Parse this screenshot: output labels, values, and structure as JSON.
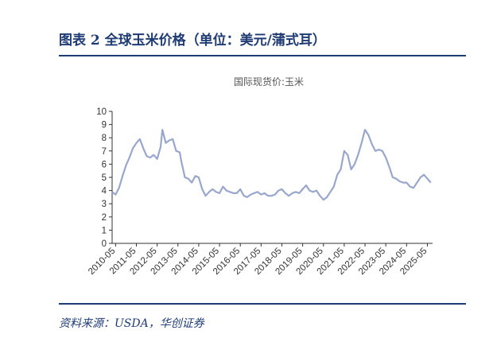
{
  "header": {
    "title": "图表 2   全球玉米价格（单位：美元/蒲式耳）"
  },
  "footer": {
    "source": "资料来源：USDA，华创证券"
  },
  "colors": {
    "accent": "#1f3b73",
    "series": "#9aa7cc"
  },
  "chart_data": {
    "type": "line",
    "title": "国际现货价:玉米",
    "xlabel": "",
    "ylabel": "",
    "ylim": [
      0,
      10
    ],
    "yticks": [
      0,
      1,
      2,
      3,
      4,
      5,
      6,
      7,
      8,
      9,
      10
    ],
    "xlim": [
      "2010-03",
      "2025-08"
    ],
    "xtick_labels": [
      "2010-05",
      "2011-05",
      "2012-05",
      "2013-05",
      "2014-05",
      "2015-05",
      "2016-05",
      "2017-05",
      "2018-05",
      "2019-05",
      "2020-05",
      "2021-05",
      "2022-05",
      "2023-05",
      "2024-05",
      "2025-05"
    ],
    "grid": false,
    "legend": "none",
    "series": [
      {
        "x": [
          "2010-03",
          "2010-05",
          "2010-07",
          "2010-09",
          "2010-11",
          "2011-01",
          "2011-03",
          "2011-05",
          "2011-07",
          "2011-09",
          "2011-11",
          "2012-01",
          "2012-03",
          "2012-05",
          "2012-07",
          "2012-08",
          "2012-10",
          "2012-12",
          "2013-02",
          "2013-04",
          "2013-06",
          "2013-07",
          "2013-09",
          "2013-11",
          "2014-01",
          "2014-03",
          "2014-05",
          "2014-07",
          "2014-09",
          "2014-11",
          "2015-01",
          "2015-03",
          "2015-05",
          "2015-07",
          "2015-09",
          "2015-11",
          "2016-01",
          "2016-03",
          "2016-05",
          "2016-07",
          "2016-09",
          "2016-11",
          "2017-01",
          "2017-03",
          "2017-05",
          "2017-07",
          "2017-09",
          "2017-11",
          "2018-01",
          "2018-03",
          "2018-05",
          "2018-07",
          "2018-09",
          "2018-11",
          "2019-01",
          "2019-03",
          "2019-05",
          "2019-07",
          "2019-09",
          "2019-11",
          "2020-01",
          "2020-03",
          "2020-05",
          "2020-07",
          "2020-09",
          "2020-11",
          "2021-01",
          "2021-03",
          "2021-05",
          "2021-07",
          "2021-09",
          "2021-11",
          "2022-01",
          "2022-03",
          "2022-05",
          "2022-07",
          "2022-09",
          "2022-11",
          "2023-01",
          "2023-03",
          "2023-05",
          "2023-07",
          "2023-09",
          "2023-11",
          "2024-01",
          "2024-03",
          "2024-05",
          "2024-07",
          "2024-09",
          "2024-11",
          "2025-01",
          "2025-03",
          "2025-05",
          "2025-07"
        ],
        "values": [
          3.9,
          3.7,
          4.2,
          5.1,
          5.9,
          6.5,
          7.2,
          7.6,
          7.9,
          7.2,
          6.6,
          6.5,
          6.7,
          6.4,
          7.3,
          8.6,
          7.6,
          7.8,
          7.9,
          7.0,
          6.9,
          6.2,
          5.0,
          4.9,
          4.6,
          5.1,
          5.0,
          4.1,
          3.6,
          3.9,
          4.1,
          3.9,
          3.8,
          4.3,
          4.0,
          3.9,
          3.8,
          3.8,
          4.1,
          3.6,
          3.5,
          3.7,
          3.8,
          3.9,
          3.7,
          3.8,
          3.6,
          3.6,
          3.7,
          4.0,
          4.1,
          3.8,
          3.6,
          3.8,
          3.9,
          3.8,
          4.1,
          4.4,
          4.0,
          3.9,
          4.0,
          3.6,
          3.3,
          3.5,
          3.9,
          4.3,
          5.2,
          5.6,
          7.0,
          6.7,
          5.6,
          6.0,
          6.7,
          7.6,
          8.6,
          8.2,
          7.5,
          7.0,
          7.1,
          7.0,
          6.5,
          5.8,
          5.0,
          4.9,
          4.7,
          4.6,
          4.6,
          4.3,
          4.2,
          4.6,
          5.0,
          5.2,
          4.9,
          4.6
        ]
      }
    ]
  }
}
